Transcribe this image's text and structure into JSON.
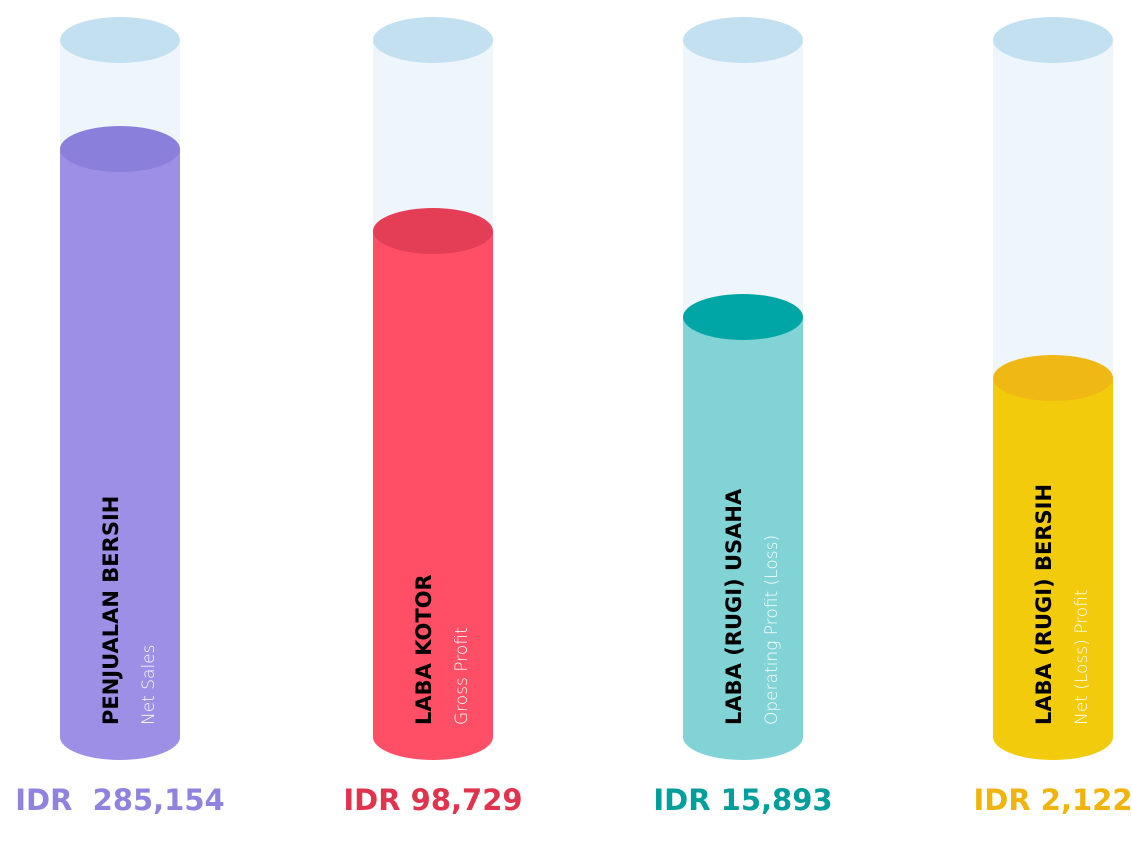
{
  "items": [
    {
      "title": "PENJUALAN BERSIH",
      "subtitle": "Net Sales",
      "value": "IDR  285,154",
      "color": "#9d8fe6",
      "top_color": "#8a7fdb",
      "value_color": "#8f83df"
    },
    {
      "title": "LABA KOTOR",
      "subtitle": "Gross Profit",
      "value": "IDR 98,729",
      "color": "#ff4f66",
      "top_color": "#e43d56",
      "value_color": "#e0344e"
    },
    {
      "title": "LABA (RUGI) USAHA",
      "subtitle": "Operating Profit (Loss)",
      "value": "IDR 15,893",
      "color": "#82d3d6",
      "top_color": "#00a6a6",
      "value_color": "#009f9c"
    },
    {
      "title": "LABA (RUGI) BERSIH",
      "subtitle": "Net (Loss) Profit",
      "value": "IDR 2,122",
      "color": "#f2cb0c",
      "top_color": "#f0b814",
      "value_color": "#f0b40c"
    }
  ]
}
